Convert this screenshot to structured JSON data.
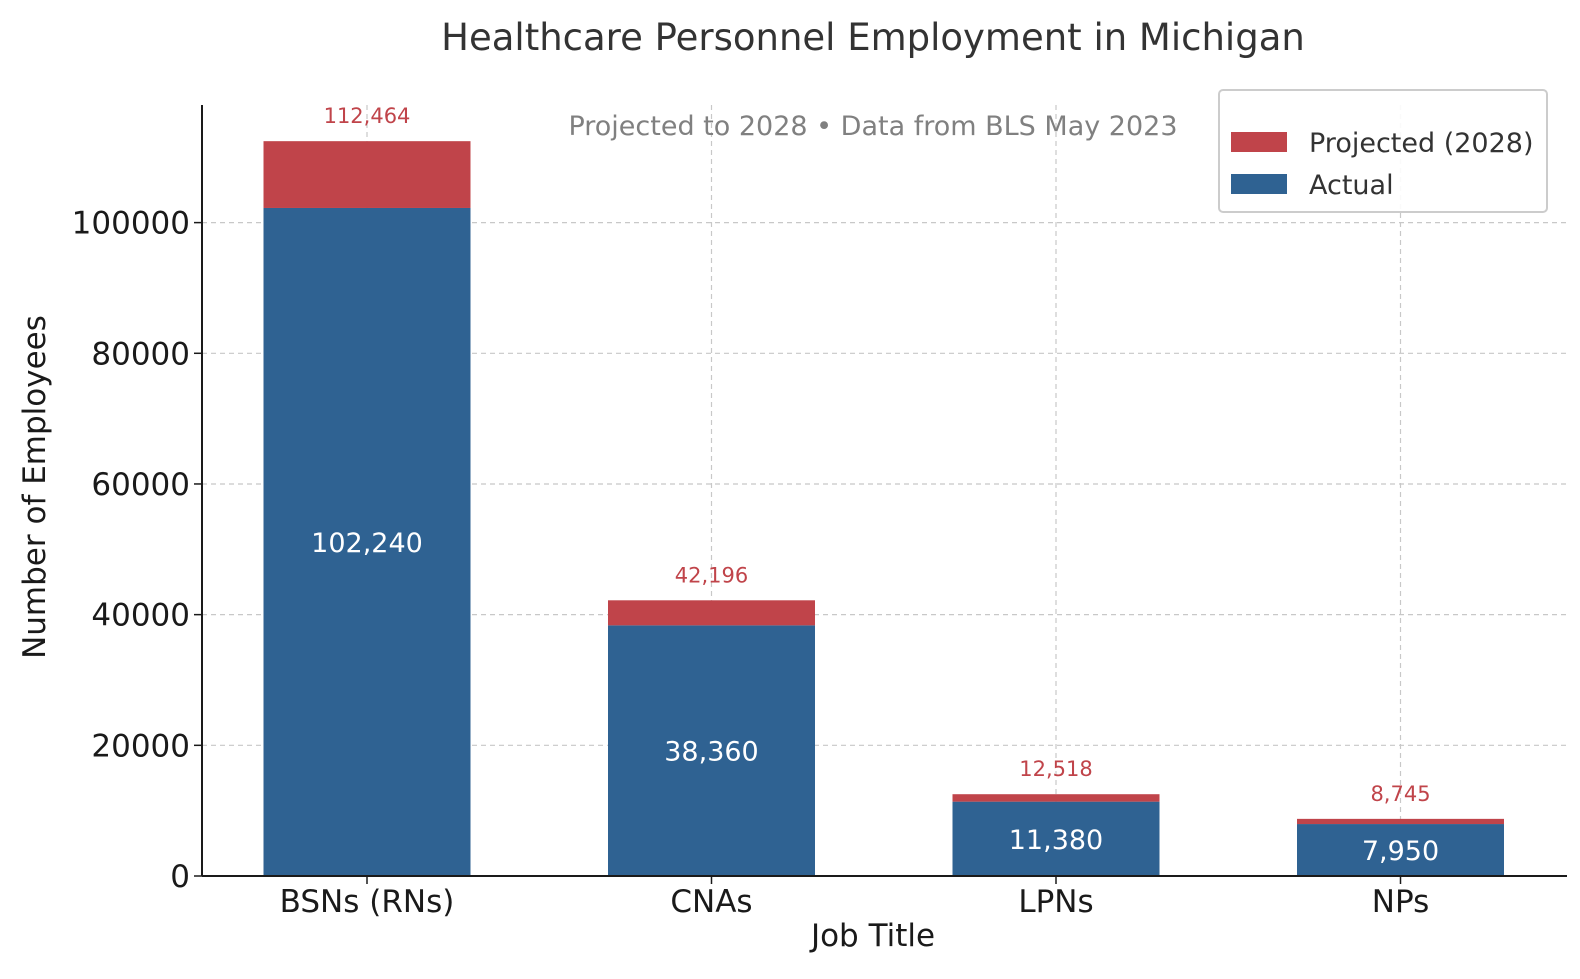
{
  "chart_data": {
    "type": "bar",
    "stacked": true,
    "title": "Healthcare Personnel Employment in Michigan",
    "subtitle": "Projected to 2028 • Data from BLS May 2023",
    "xlabel": "Job Title",
    "ylabel": "Number of Employees",
    "categories": [
      "BSNs (RNs)",
      "CNAs",
      "LPNs",
      "NPs"
    ],
    "series": [
      {
        "name": "Actual",
        "color": "#2f6292",
        "values": [
          102240,
          38360,
          11380,
          7950
        ]
      },
      {
        "name": "Projected (2028)",
        "color": "#c0444a",
        "values": [
          10224,
          3836,
          1138,
          795
        ]
      }
    ],
    "actual_labels": [
      "102,240",
      "38,360",
      "11,380",
      "7,950"
    ],
    "projected_totals": [
      112464,
      42196,
      12518,
      8745
    ],
    "projected_labels": [
      "112,464",
      "42,196",
      "12,518",
      "8,745"
    ],
    "ylim": [
      0,
      118000
    ],
    "yticks": [
      0,
      20000,
      40000,
      60000,
      80000,
      100000
    ],
    "ytick_labels": [
      "0",
      "20000",
      "40000",
      "60000",
      "80000",
      "100000"
    ],
    "grid": true,
    "legend": {
      "placement": "top-right",
      "entries": [
        {
          "label": "Projected (2028)",
          "color": "#c0444a"
        },
        {
          "label": "Actual",
          "color": "#2f6292"
        }
      ]
    }
  }
}
